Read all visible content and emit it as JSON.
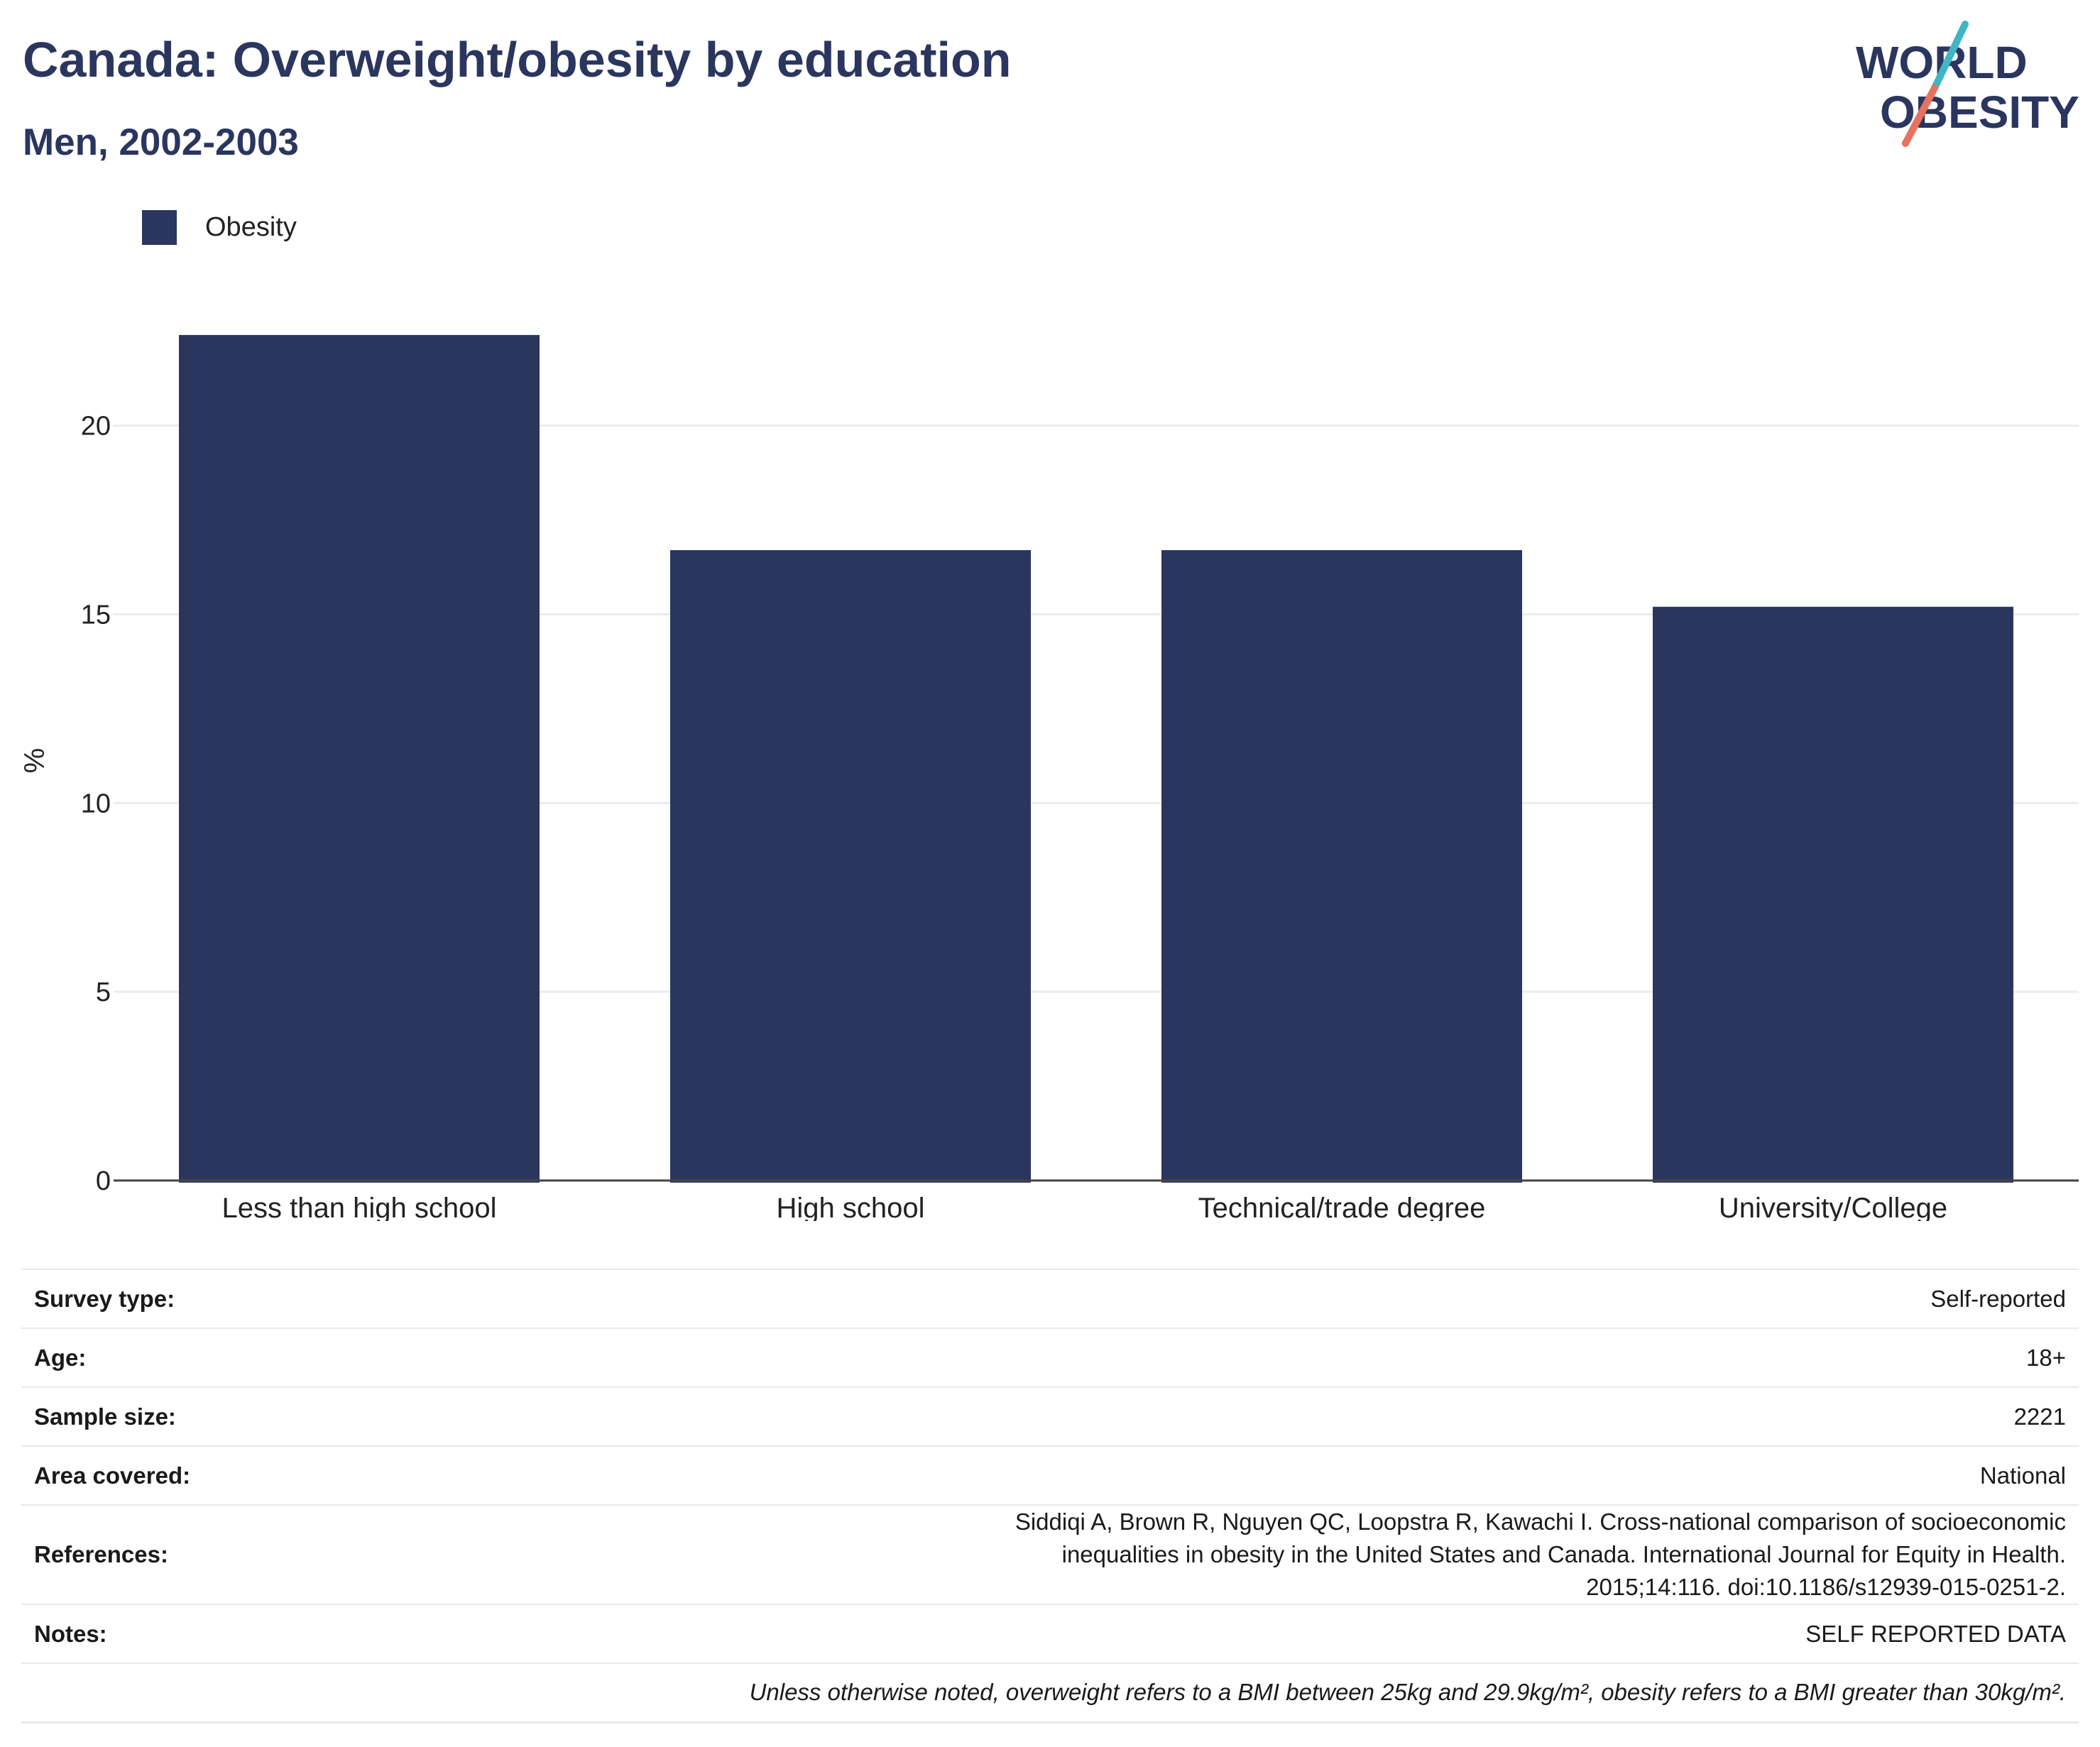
{
  "header": {
    "title": "Canada: Overweight/obesity by education",
    "subtitle": "Men, 2002-2003"
  },
  "logo": {
    "line1": "WORLD",
    "line2": "OBESITY",
    "colors": {
      "text": "#2b365f",
      "slash_top": "#3fb6c1",
      "slash_bottom": "#e8715f"
    }
  },
  "legend": {
    "items": [
      {
        "label": "Obesity",
        "color": "#2b365f"
      }
    ]
  },
  "chart_data": {
    "type": "bar",
    "categories": [
      "Less than high school",
      "High school",
      "Technical/trade degree",
      "University/College"
    ],
    "series": [
      {
        "name": "Obesity",
        "values": [
          22.4,
          16.7,
          16.7,
          15.2
        ],
        "color": "#2b365f"
      }
    ],
    "ylabel": "%",
    "xlabel": "",
    "ylim": [
      0,
      23
    ],
    "yticks": [
      0,
      5,
      10,
      15,
      20
    ],
    "grid": true,
    "legend_position": "top-left"
  },
  "info": {
    "rows": [
      {
        "key": "Survey type:",
        "value": "Self-reported"
      },
      {
        "key": "Age:",
        "value": "18+"
      },
      {
        "key": "Sample size:",
        "value": "2221"
      },
      {
        "key": "Area covered:",
        "value": "National"
      },
      {
        "key": "References:",
        "value": "Siddiqi A, Brown R, Nguyen QC, Loopstra R, Kawachi I. Cross-national comparison of socioeconomic inequalities in obesity in the United States and Canada. International Journal for Equity in Health. 2015;14:116. doi:10.1186/s12939-015-0251-2."
      },
      {
        "key": "Notes:",
        "value": "SELF REPORTED DATA"
      }
    ],
    "footnote": "Unless otherwise noted, overweight refers to a BMI between 25kg and 29.9kg/m², obesity refers to a BMI greater than 30kg/m²."
  }
}
